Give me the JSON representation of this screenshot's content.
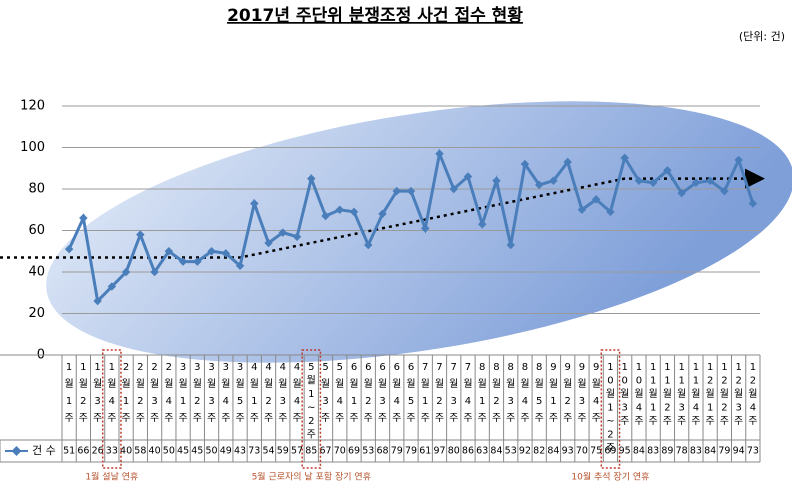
{
  "chart_data": {
    "type": "line",
    "title": "2017년 주단위 분쟁조정 사건 접수 현황",
    "unit": "(단위: 건)",
    "categories": [
      "1월1주",
      "1월2주",
      "1월3주",
      "1월4주",
      "2월1주",
      "2월2주",
      "2월3주",
      "2월4주",
      "3월1주",
      "3월2주",
      "3월3주",
      "3월4주",
      "3월5주",
      "4월1주",
      "4월2주",
      "4월3주",
      "4월4주",
      "5월1~2주",
      "5월3주",
      "5월4주",
      "6월1주",
      "6월2주",
      "6월3주",
      "6월4주",
      "6월5주",
      "7월1주",
      "7월2주",
      "7월3주",
      "7월4주",
      "8월1주",
      "8월2주",
      "8월3주",
      "8월4주",
      "8월5주",
      "9월1주",
      "9월2주",
      "9월3주",
      "9월4주",
      "10월1~2주",
      "10월3주",
      "10월4주",
      "11월1주",
      "11월2주",
      "11월3주",
      "11월4주",
      "12월1주",
      "12월2주",
      "12월3주",
      "12월4주"
    ],
    "series": [
      {
        "name": "건 수",
        "color": "#4a7ebb",
        "values": [
          51,
          66,
          26,
          33,
          40,
          58,
          40,
          50,
          45,
          45,
          50,
          49,
          43,
          73,
          54,
          59,
          57,
          85,
          67,
          70,
          69,
          53,
          68,
          79,
          79,
          61,
          97,
          80,
          86,
          63,
          84,
          53,
          92,
          82,
          84,
          93,
          70,
          75,
          69,
          95,
          84,
          83,
          89,
          78,
          83,
          84,
          79,
          94,
          73
        ]
      }
    ],
    "ylim": [
      0,
      120
    ],
    "yticks": [
      0,
      20,
      40,
      60,
      80,
      100,
      120
    ],
    "grid": true,
    "trend": {
      "at": [
        0,
        12,
        39,
        48
      ],
      "values": [
        47,
        47,
        85,
        85
      ]
    },
    "annotations": [
      {
        "text": "1월 설날 연휴",
        "category_index": 3
      },
      {
        "text": "5월 근로자의 날 포함 장기 연휴",
        "category_index": 17
      },
      {
        "text": "10월 추석 장기 연휴",
        "category_index": 38
      }
    ]
  }
}
